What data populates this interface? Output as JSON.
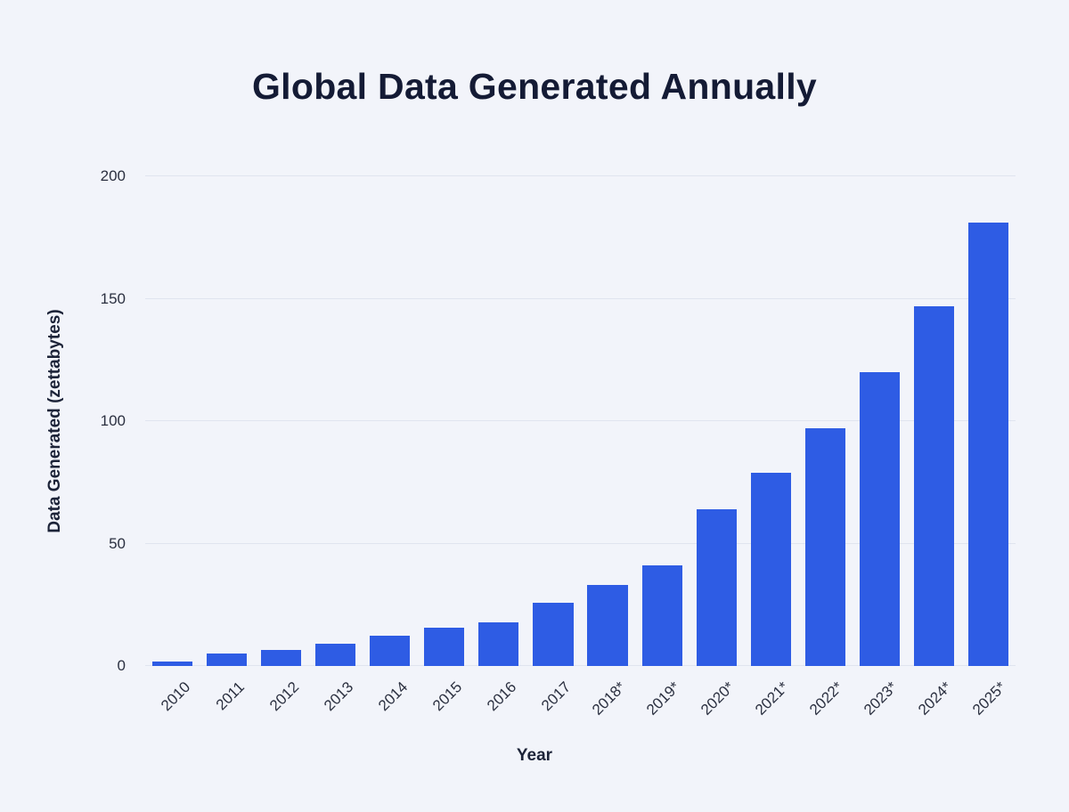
{
  "chart_data": {
    "type": "bar",
    "title": "Global Data Generated Annually",
    "xlabel": "Year",
    "ylabel": "Data Generated (zettabytes)",
    "categories": [
      "2010",
      "2011",
      "2012",
      "2013",
      "2014",
      "2015",
      "2016",
      "2017",
      "2018*",
      "2019*",
      "2020*",
      "2021*",
      "2022*",
      "2023*",
      "2024*",
      "2025*"
    ],
    "values": [
      2,
      5,
      6.5,
      9,
      12.5,
      15.5,
      18,
      26,
      33,
      41,
      64,
      79,
      97,
      120,
      147,
      181
    ],
    "ylim": [
      0,
      200
    ],
    "yticks": [
      0,
      50,
      100,
      150,
      200
    ],
    "bar_color": "#2e5ce4",
    "background_color": "#f2f4fa",
    "gridline_color": "#e0e4ef",
    "grid": true,
    "legend": false
  }
}
